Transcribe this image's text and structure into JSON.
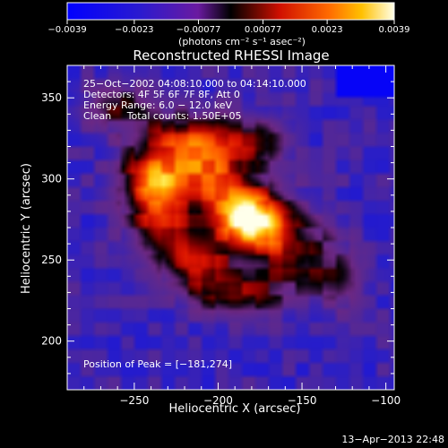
{
  "chart_data": {
    "type": "heatmap",
    "title": "Reconstructed RHESSI Image",
    "xlabel": "Heliocentric X (arcsec)",
    "ylabel": "Heliocentric Y (arcsec)",
    "xlim": [
      -290,
      -95
    ],
    "ylim": [
      170,
      370
    ],
    "xticks": [
      -250,
      -200,
      -150,
      -100
    ],
    "xtick_labels": [
      "−250",
      "−200",
      "−150",
      "−100"
    ],
    "yticks": [
      200,
      250,
      300,
      350
    ],
    "ytick_labels": [
      "200",
      "250",
      "300",
      "350"
    ],
    "colorbar": {
      "range": [
        -0.0039,
        0.0039
      ],
      "ticks": [
        -0.0039,
        -0.0023,
        -0.00077,
        0.00077,
        0.0023,
        0.0039
      ],
      "tick_labels": [
        "−0.0039",
        "−0.0023",
        "−0.00077",
        "0.00077",
        "0.0023",
        "0.0039"
      ],
      "unit_label": "(photons cm⁻² s⁻¹ asec⁻²)",
      "placement": "top"
    },
    "annotations": [
      "25−Oct−2002 04:08:10.000 to 04:14:10.000",
      "Detectors: 4F 5F 6F 7F 8F, Att 0",
      "Energy Range: 6.0 − 12.0 keV",
      "Clean     Total counts: 1.50E+05"
    ],
    "peak_label": "Position of Peak = [−181,274]",
    "peak": [
      -181,
      274
    ],
    "sources": [
      {
        "x": -181,
        "y": 274,
        "sx": 14,
        "sy": 13,
        "amp": 0.0039
      },
      {
        "x": -240,
        "y": 298,
        "sx": 13,
        "sy": 13,
        "amp": 0.0028
      },
      {
        "x": -205,
        "y": 300,
        "sx": 18,
        "sy": 16,
        "amp": 0.0024
      },
      {
        "x": -215,
        "y": 250,
        "sx": 14,
        "sy": 12,
        "amp": 0.0022
      },
      {
        "x": -218,
        "y": 325,
        "sx": 22,
        "sy": 12,
        "amp": 0.0019
      },
      {
        "x": -155,
        "y": 255,
        "sx": 16,
        "sy": 18,
        "amp": 0.0016
      },
      {
        "x": -190,
        "y": 230,
        "sx": 18,
        "sy": 10,
        "amp": 0.0016
      },
      {
        "x": -235,
        "y": 270,
        "sx": 12,
        "sy": 12,
        "amp": 0.0017
      },
      {
        "x": -262,
        "y": 345,
        "sx": 14,
        "sy": 10,
        "amp": 0.0013
      },
      {
        "x": -128,
        "y": 240,
        "sx": 10,
        "sy": 14,
        "amp": 0.001
      },
      {
        "x": -175,
        "y": 325,
        "sx": 12,
        "sy": 10,
        "amp": 0.0012
      }
    ],
    "background_level": -0.0021
  },
  "footer": {
    "timestamp": "13−Apr−2013 22:48"
  }
}
